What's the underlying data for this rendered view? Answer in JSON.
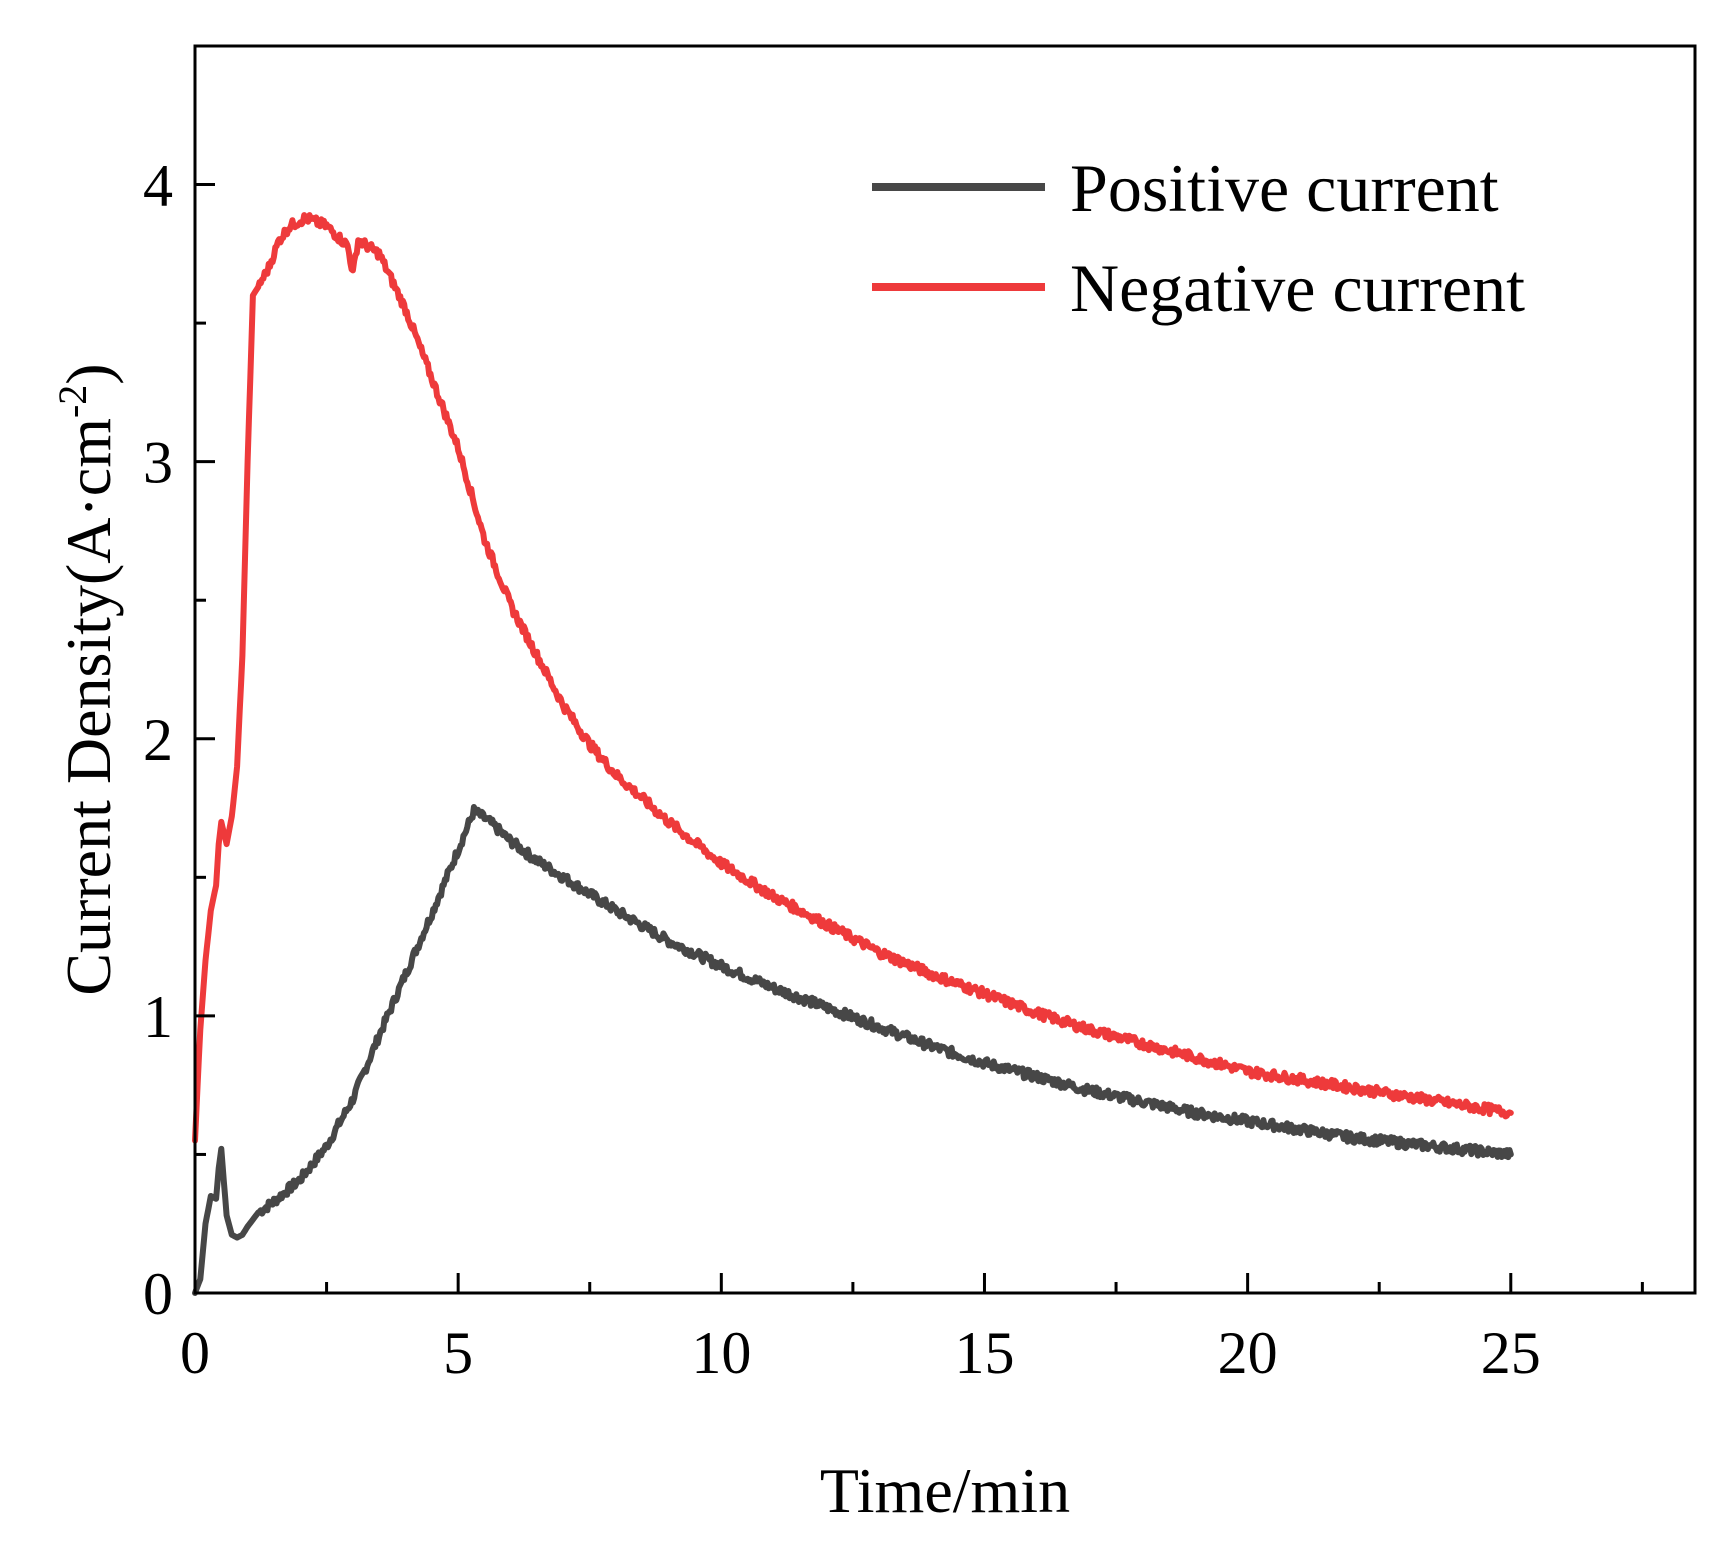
{
  "chart_data": {
    "type": "line",
    "title": "",
    "xlabel": "Time/min",
    "ylabel": "Current Density(A·cm",
    "ylabel_sup": "-2",
    "ylabel_close": ")",
    "xlim": [
      0,
      28.5
    ],
    "ylim": [
      0,
      4.5
    ],
    "x_ticks": [
      0,
      5,
      10,
      15,
      20,
      25
    ],
    "x_tick_labels": [
      "0",
      "5",
      "10",
      "15",
      "20",
      "25"
    ],
    "y_ticks": [
      0,
      1,
      2,
      3,
      4
    ],
    "y_tick_labels": [
      "0",
      "1",
      "2",
      "3",
      "4"
    ],
    "legend_position": "top-right",
    "grid": false,
    "series": [
      {
        "name": "Positive current",
        "color": "#474747",
        "points": [
          [
            0,
            0
          ],
          [
            0.1,
            0.05
          ],
          [
            0.2,
            0.25
          ],
          [
            0.3,
            0.35
          ],
          [
            0.4,
            0.34
          ],
          [
            0.45,
            0.45
          ],
          [
            0.5,
            0.52
          ],
          [
            0.55,
            0.4
          ],
          [
            0.6,
            0.28
          ],
          [
            0.7,
            0.21
          ],
          [
            0.8,
            0.2
          ],
          [
            0.9,
            0.21
          ],
          [
            1.0,
            0.24
          ],
          [
            1.2,
            0.29
          ],
          [
            1.5,
            0.33
          ],
          [
            2.0,
            0.41
          ],
          [
            2.5,
            0.53
          ],
          [
            3.0,
            0.7
          ],
          [
            3.5,
            0.93
          ],
          [
            4.0,
            1.15
          ],
          [
            4.5,
            1.37
          ],
          [
            5.0,
            1.6
          ],
          [
            5.3,
            1.74
          ],
          [
            5.6,
            1.7
          ],
          [
            6.0,
            1.63
          ],
          [
            6.5,
            1.56
          ],
          [
            7.0,
            1.5
          ],
          [
            8.0,
            1.38
          ],
          [
            9.0,
            1.27
          ],
          [
            10.0,
            1.18
          ],
          [
            11.0,
            1.1
          ],
          [
            12.0,
            1.03
          ],
          [
            13.0,
            0.96
          ],
          [
            14.0,
            0.89
          ],
          [
            15.0,
            0.83
          ],
          [
            16.0,
            0.78
          ],
          [
            17.0,
            0.73
          ],
          [
            18.0,
            0.69
          ],
          [
            19.0,
            0.65
          ],
          [
            20.0,
            0.62
          ],
          [
            21.0,
            0.59
          ],
          [
            22.0,
            0.56
          ],
          [
            23.0,
            0.54
          ],
          [
            24.0,
            0.52
          ],
          [
            25.0,
            0.5
          ]
        ]
      },
      {
        "name": "Negative current",
        "color": "#ee3a3b",
        "points": [
          [
            0,
            0.55
          ],
          [
            0.1,
            0.95
          ],
          [
            0.2,
            1.2
          ],
          [
            0.3,
            1.38
          ],
          [
            0.4,
            1.47
          ],
          [
            0.45,
            1.62
          ],
          [
            0.5,
            1.7
          ],
          [
            0.6,
            1.62
          ],
          [
            0.7,
            1.72
          ],
          [
            0.8,
            1.9
          ],
          [
            0.9,
            2.3
          ],
          [
            1.0,
            3.0
          ],
          [
            1.1,
            3.6
          ],
          [
            1.2,
            3.63
          ],
          [
            1.4,
            3.7
          ],
          [
            1.6,
            3.8
          ],
          [
            1.8,
            3.85
          ],
          [
            2.1,
            3.88
          ],
          [
            2.5,
            3.85
          ],
          [
            2.9,
            3.78
          ],
          [
            3.0,
            3.68
          ],
          [
            3.1,
            3.8
          ],
          [
            3.5,
            3.75
          ],
          [
            4.0,
            3.55
          ],
          [
            4.5,
            3.3
          ],
          [
            5.0,
            3.05
          ],
          [
            5.5,
            2.72
          ],
          [
            6.0,
            2.48
          ],
          [
            6.5,
            2.3
          ],
          [
            7.0,
            2.12
          ],
          [
            7.5,
            1.98
          ],
          [
            8.0,
            1.87
          ],
          [
            9.0,
            1.7
          ],
          [
            10.0,
            1.55
          ],
          [
            11.0,
            1.43
          ],
          [
            12.0,
            1.33
          ],
          [
            13.0,
            1.23
          ],
          [
            14.0,
            1.15
          ],
          [
            15.0,
            1.08
          ],
          [
            16.0,
            1.01
          ],
          [
            17.0,
            0.95
          ],
          [
            18.0,
            0.9
          ],
          [
            19.0,
            0.85
          ],
          [
            20.0,
            0.8
          ],
          [
            21.0,
            0.77
          ],
          [
            22.0,
            0.74
          ],
          [
            23.0,
            0.71
          ],
          [
            24.0,
            0.68
          ],
          [
            25.0,
            0.65
          ]
        ]
      }
    ]
  }
}
